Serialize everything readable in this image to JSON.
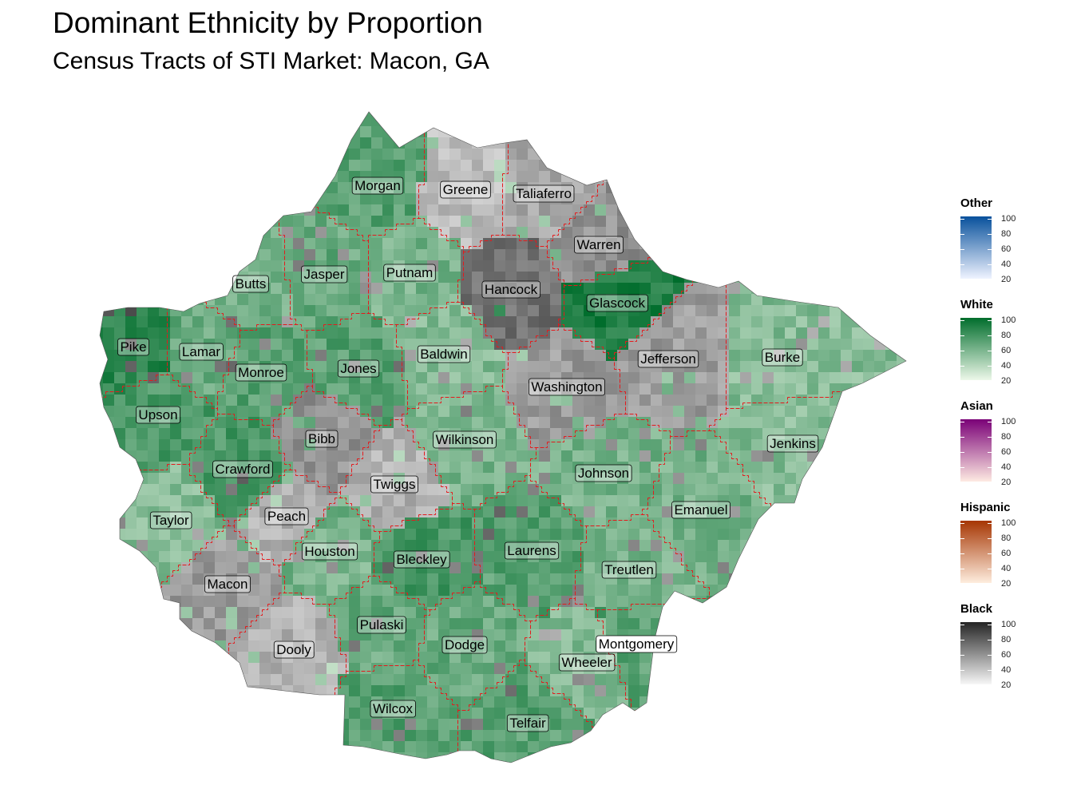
{
  "title": "Dominant Ethnicity by Proportion",
  "subtitle": "Census Tracts of STI Market: Macon, GA",
  "legends": [
    {
      "title": "Other",
      "ticks": [
        "100",
        "80",
        "60",
        "40",
        "20"
      ],
      "color_high": "#08519c",
      "color_low": "#eff3ff"
    },
    {
      "title": "White",
      "ticks": [
        "100",
        "80",
        "60",
        "40",
        "20"
      ],
      "color_high": "#006d2c",
      "color_low": "#edf8e9"
    },
    {
      "title": "Asian",
      "ticks": [
        "100",
        "80",
        "60",
        "40",
        "20"
      ],
      "color_high": "#7a0177",
      "color_low": "#feebe2"
    },
    {
      "title": "Hispanic",
      "ticks": [
        "100",
        "80",
        "60",
        "40",
        "20"
      ],
      "color_high": "#a63603",
      "color_low": "#feedde"
    },
    {
      "title": "Black",
      "ticks": [
        "100",
        "80",
        "60",
        "40",
        "20"
      ],
      "color_high": "#252525",
      "color_low": "#f7f7f7"
    }
  ],
  "counties": [
    {
      "name": "Morgan",
      "dominant": "White",
      "pct": 70
    },
    {
      "name": "Greene",
      "dominant": "Black",
      "pct": 40
    },
    {
      "name": "Taliaferro",
      "dominant": "Black",
      "pct": 50
    },
    {
      "name": "Warren",
      "dominant": "Black",
      "pct": 60
    },
    {
      "name": "Butts",
      "dominant": "White",
      "pct": 60
    },
    {
      "name": "Jasper",
      "dominant": "White",
      "pct": 65
    },
    {
      "name": "Putnam",
      "dominant": "White",
      "pct": 60
    },
    {
      "name": "Hancock",
      "dominant": "Black",
      "pct": 75
    },
    {
      "name": "Glascock",
      "dominant": "White",
      "pct": 90
    },
    {
      "name": "Pike",
      "dominant": "White",
      "pct": 85
    },
    {
      "name": "Lamar",
      "dominant": "White",
      "pct": 65
    },
    {
      "name": "Monroe",
      "dominant": "White",
      "pct": 70
    },
    {
      "name": "Jones",
      "dominant": "White",
      "pct": 70
    },
    {
      "name": "Baldwin",
      "dominant": "White",
      "pct": 55
    },
    {
      "name": "Jefferson",
      "dominant": "Black",
      "pct": 55
    },
    {
      "name": "Burke",
      "dominant": "White",
      "pct": 55
    },
    {
      "name": "Washington",
      "dominant": "Black",
      "pct": 55
    },
    {
      "name": "Upson",
      "dominant": "White",
      "pct": 75
    },
    {
      "name": "Bibb",
      "dominant": "Black",
      "pct": 60
    },
    {
      "name": "Wilkinson",
      "dominant": "White",
      "pct": 60
    },
    {
      "name": "Jenkins",
      "dominant": "White",
      "pct": 55
    },
    {
      "name": "Crawford",
      "dominant": "White",
      "pct": 75
    },
    {
      "name": "Twiggs",
      "dominant": "Black",
      "pct": 45
    },
    {
      "name": "Johnson",
      "dominant": "White",
      "pct": 60
    },
    {
      "name": "Emanuel",
      "dominant": "White",
      "pct": 60
    },
    {
      "name": "Taylor",
      "dominant": "White",
      "pct": 55
    },
    {
      "name": "Peach",
      "dominant": "Black",
      "pct": 45
    },
    {
      "name": "Laurens",
      "dominant": "White",
      "pct": 70
    },
    {
      "name": "Houston",
      "dominant": "White",
      "pct": 60
    },
    {
      "name": "Bleckley",
      "dominant": "White",
      "pct": 75
    },
    {
      "name": "Treutlen",
      "dominant": "White",
      "pct": 60
    },
    {
      "name": "Macon",
      "dominant": "Black",
      "pct": 55
    },
    {
      "name": "Pulaski",
      "dominant": "White",
      "pct": 65
    },
    {
      "name": "Dooly",
      "dominant": "Black",
      "pct": 45
    },
    {
      "name": "Dodge",
      "dominant": "White",
      "pct": 65
    },
    {
      "name": "Montgomery",
      "dominant": "White",
      "pct": 70
    },
    {
      "name": "Wheeler",
      "dominant": "White",
      "pct": 55
    },
    {
      "name": "Wilcox",
      "dominant": "White",
      "pct": 70
    },
    {
      "name": "Telfair",
      "dominant": "White",
      "pct": 70
    }
  ]
}
